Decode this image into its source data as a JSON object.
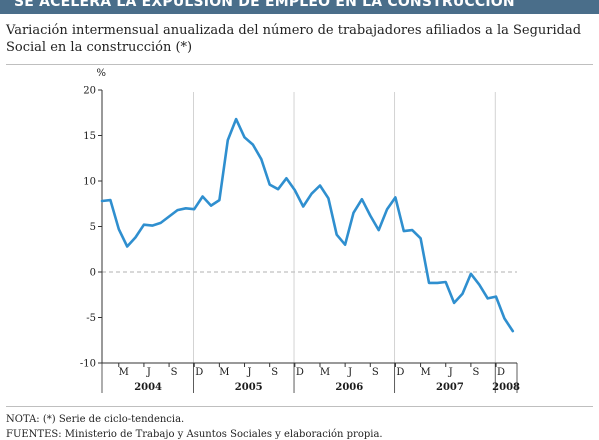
{
  "header": {
    "title": "SE ACELERA LA EXPULSIÓN DE EMPLEO EN LA CONSTRUCCIÓN"
  },
  "subtitle": "Variación intermensual anualizada del número de trabajadores afiliados a la Seguridad Social en la construcción (*)",
  "footer": {
    "note": "NOTA: (*) Serie de ciclo-tendencia.",
    "sources": "FUENTES: Ministerio de Trabajo y Asuntos Sociales y elaboración propia."
  },
  "colors": {
    "line": "#2f8fcf",
    "header_band": "#4a6e8a",
    "axis": "#333333",
    "zero_line": "#b0b0b0"
  },
  "chart_data": {
    "type": "line",
    "title": "",
    "xlabel": "",
    "ylabel": "%",
    "ylim": [
      -10,
      20
    ],
    "yticks": [
      20,
      15,
      10,
      5,
      0,
      -5,
      -10
    ],
    "xlim": [
      0,
      49.5
    ],
    "month_ticks": [
      {
        "label": "M",
        "x": 2
      },
      {
        "label": "J",
        "x": 5
      },
      {
        "label": "S",
        "x": 8
      },
      {
        "label": "D",
        "x": 11
      },
      {
        "label": "M",
        "x": 14
      },
      {
        "label": "J",
        "x": 17
      },
      {
        "label": "S",
        "x": 20
      },
      {
        "label": "D",
        "x": 23
      },
      {
        "label": "M",
        "x": 26
      },
      {
        "label": "J",
        "x": 29
      },
      {
        "label": "S",
        "x": 32
      },
      {
        "label": "D",
        "x": 35
      },
      {
        "label": "M",
        "x": 38
      },
      {
        "label": "J",
        "x": 41
      },
      {
        "label": "S",
        "x": 44
      },
      {
        "label": "D",
        "x": 47
      }
    ],
    "year_labels": [
      {
        "label": "2004",
        "x": 5.5
      },
      {
        "label": "2005",
        "x": 17.5
      },
      {
        "label": "2006",
        "x": 29.5
      },
      {
        "label": "2007",
        "x": 41.5
      },
      {
        "label": "2008",
        "x": 48.2
      }
    ],
    "year_separators": [
      11.5,
      23.5,
      35.5,
      47.5
    ],
    "series": [
      {
        "x": [
          0,
          1,
          2,
          3,
          4,
          5,
          6,
          7,
          8,
          9,
          10,
          11,
          12,
          13,
          14,
          15,
          16,
          17,
          18,
          19,
          20,
          21,
          22,
          23,
          24,
          25,
          26,
          27,
          28,
          29,
          30,
          31,
          32,
          33,
          34,
          35,
          36,
          37,
          38,
          39,
          40,
          41,
          42,
          43,
          44,
          45,
          46,
          47,
          48,
          49
        ],
        "values": [
          7.8,
          7.9,
          4.7,
          2.8,
          3.8,
          5.2,
          5.1,
          5.4,
          6.1,
          6.8,
          7.0,
          6.9,
          8.3,
          7.3,
          7.9,
          14.5,
          16.8,
          14.8,
          14.0,
          12.4,
          9.6,
          9.1,
          10.3,
          9.0,
          7.2,
          8.6,
          9.5,
          8.1,
          4.1,
          3.0,
          6.5,
          8.0,
          6.2,
          4.6,
          6.9,
          8.2,
          4.5,
          4.6,
          3.7,
          -1.2,
          -1.2,
          -1.1,
          -3.4,
          -2.4,
          -0.2,
          -1.4,
          -2.9,
          -2.7,
          -5.1,
          -6.5
        ]
      }
    ]
  }
}
